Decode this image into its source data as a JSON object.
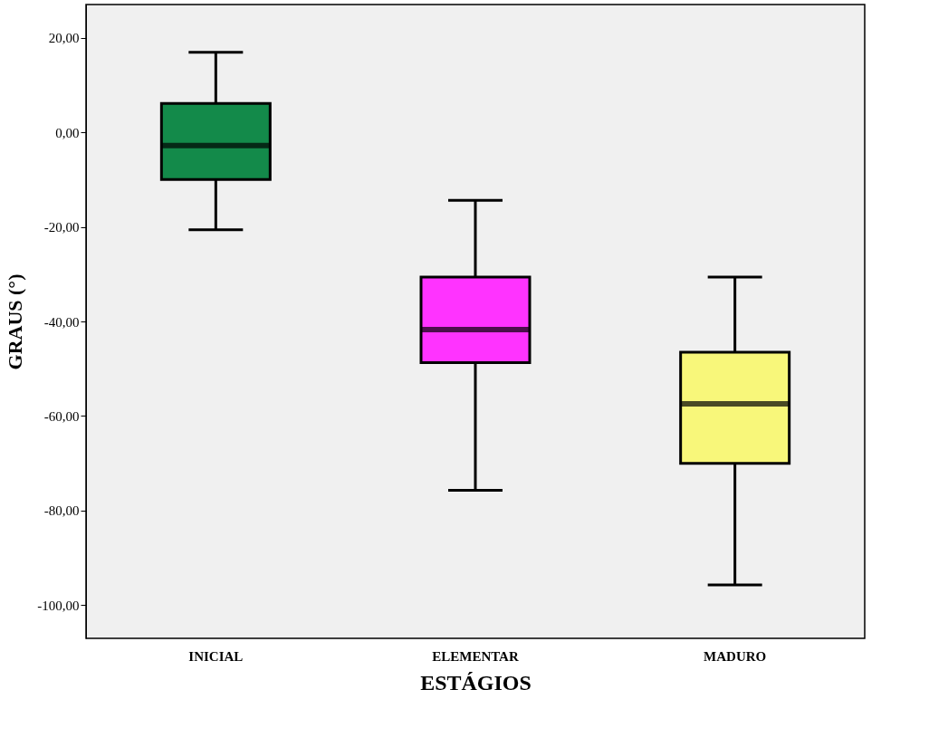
{
  "chart_data": {
    "type": "box",
    "xlabel": "ESTÁGIOS",
    "ylabel": "GRAUS (°)",
    "categories": [
      "INICIAL",
      "ELEMENTAR",
      "MADURO"
    ],
    "colors": [
      "#138a4a",
      "#ff33ff",
      "#f8f77a"
    ],
    "boxes": [
      {
        "low": -20.6,
        "q1": -10.0,
        "median": -2.8,
        "q3": 6.1,
        "high": 16.9
      },
      {
        "low": -75.7,
        "q1": -48.7,
        "median": -41.7,
        "q3": -30.6,
        "high": -14.4
      },
      {
        "low": -95.7,
        "q1": -70.0,
        "median": -57.4,
        "q3": -46.5,
        "high": -30.6
      }
    ],
    "ylim": [
      -107,
      27
    ],
    "yticks": [
      {
        "value": 20,
        "label": "20,00"
      },
      {
        "value": 0,
        "label": "0,00"
      },
      {
        "value": -20,
        "label": "-20,00"
      },
      {
        "value": -40,
        "label": "-40,00"
      },
      {
        "value": -60,
        "label": "-60,00"
      },
      {
        "value": -80,
        "label": "-80,00"
      },
      {
        "value": -100,
        "label": "-100,00"
      }
    ],
    "grid": false
  }
}
